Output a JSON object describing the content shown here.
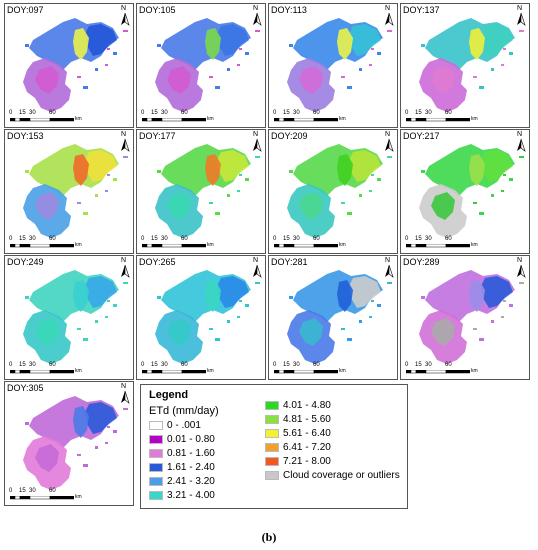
{
  "panels": [
    {
      "label": "DOY:097",
      "c1": "#4a7ae8",
      "c2": "#b26ad8",
      "c3": "#2255d8",
      "c4": "#d45ad4",
      "c5": "#e9f24a"
    },
    {
      "label": "DOY:105",
      "c1": "#4a7ae8",
      "c2": "#b26ad8",
      "c3": "#3a76e6",
      "c4": "#d45ad4",
      "c5": "#7ad84a"
    },
    {
      "label": "DOY:113",
      "c1": "#3a88ea",
      "c2": "#9b7ee0",
      "c3": "#35c0d8",
      "c4": "#d46ad8",
      "c5": "#e9f24a"
    },
    {
      "label": "DOY:137",
      "c1": "#38c3c9",
      "c2": "#cc6ad8",
      "c3": "#3fd0c0",
      "c4": "#e07ad0",
      "c5": "#f0f03a"
    },
    {
      "label": "DOY:153",
      "c1": "#a8e04a",
      "c2": "#4aa0e8",
      "c3": "#f0e03a",
      "c4": "#9a8ae0",
      "c5": "#f06a28"
    },
    {
      "label": "DOY:177",
      "c1": "#5ad84a",
      "c2": "#3ac2c8",
      "c3": "#c8e83a",
      "c4": "#3ad7b0",
      "c5": "#f07a28"
    },
    {
      "label": "DOY:209",
      "c1": "#58d84a",
      "c2": "#38c8c0",
      "c3": "#b8e43a",
      "c4": "#4ad890",
      "c5": "#40d020"
    },
    {
      "label": "DOY:217",
      "c1": "#3cd84a",
      "c2": "#cccccc",
      "c3": "#5fe040",
      "c4": "#3cc840",
      "c5": "#9ae04a"
    },
    {
      "label": "DOY:249",
      "c1": "#40d4c0",
      "c2": "#38c8c8",
      "c3": "#38a8e8",
      "c4": "#3ad8b8",
      "c5": "#38d0d0"
    },
    {
      "label": "DOY:265",
      "c1": "#30c4d8",
      "c2": "#38b8d8",
      "c3": "#2a8ae8",
      "c4": "#35cac8",
      "c5": "#38d8c0"
    },
    {
      "label": "DOY:281",
      "c1": "#3a98e8",
      "c2": "#4a7ae8",
      "c3": "#cccccc",
      "c4": "#3ab8d0",
      "c5": "#2060d8"
    },
    {
      "label": "DOY:289",
      "c1": "#c070e0",
      "c2": "#d070d8",
      "c3": "#2a5ad8",
      "c4": "#aaaaaa",
      "c5": "#9a8ee8"
    },
    {
      "label": "DOY:305",
      "c1": "#c06ad8",
      "c2": "#e27ad8",
      "c3": "#2a5ad8",
      "c4": "#c86ad8",
      "c5": "#4a7ae8"
    }
  ],
  "scale_ticks": [
    "0",
    "15",
    "30",
    "60"
  ],
  "scale_unit": "km",
  "north_label": "N",
  "legend": {
    "title": "Legend",
    "unit": "ETd (mm/day)",
    "items": [
      {
        "label": "0 - .001",
        "color": "#ffffff"
      },
      {
        "label": "0.01 - 0.80",
        "color": "#b400c8"
      },
      {
        "label": "0.81 - 1.60",
        "color": "#e27ad8"
      },
      {
        "label": "1.61 - 2.40",
        "color": "#2a5ad8"
      },
      {
        "label": "2.41 - 3.20",
        "color": "#4a9ee8"
      },
      {
        "label": "3.21 - 4.00",
        "color": "#38d8c8"
      },
      {
        "label": "4.01 - 4.80",
        "color": "#2ad828"
      },
      {
        "label": "4.81 - 5.60",
        "color": "#8ae040"
      },
      {
        "label": "5.61 - 6.40",
        "color": "#f2f230"
      },
      {
        "label": "6.41 - 7.20",
        "color": "#f0a030"
      },
      {
        "label": "7.21 - 8.00",
        "color": "#f05a20"
      },
      {
        "label": "Cloud coverage or outliers",
        "color": "#c8c8c8"
      }
    ]
  },
  "caption": "(b)"
}
